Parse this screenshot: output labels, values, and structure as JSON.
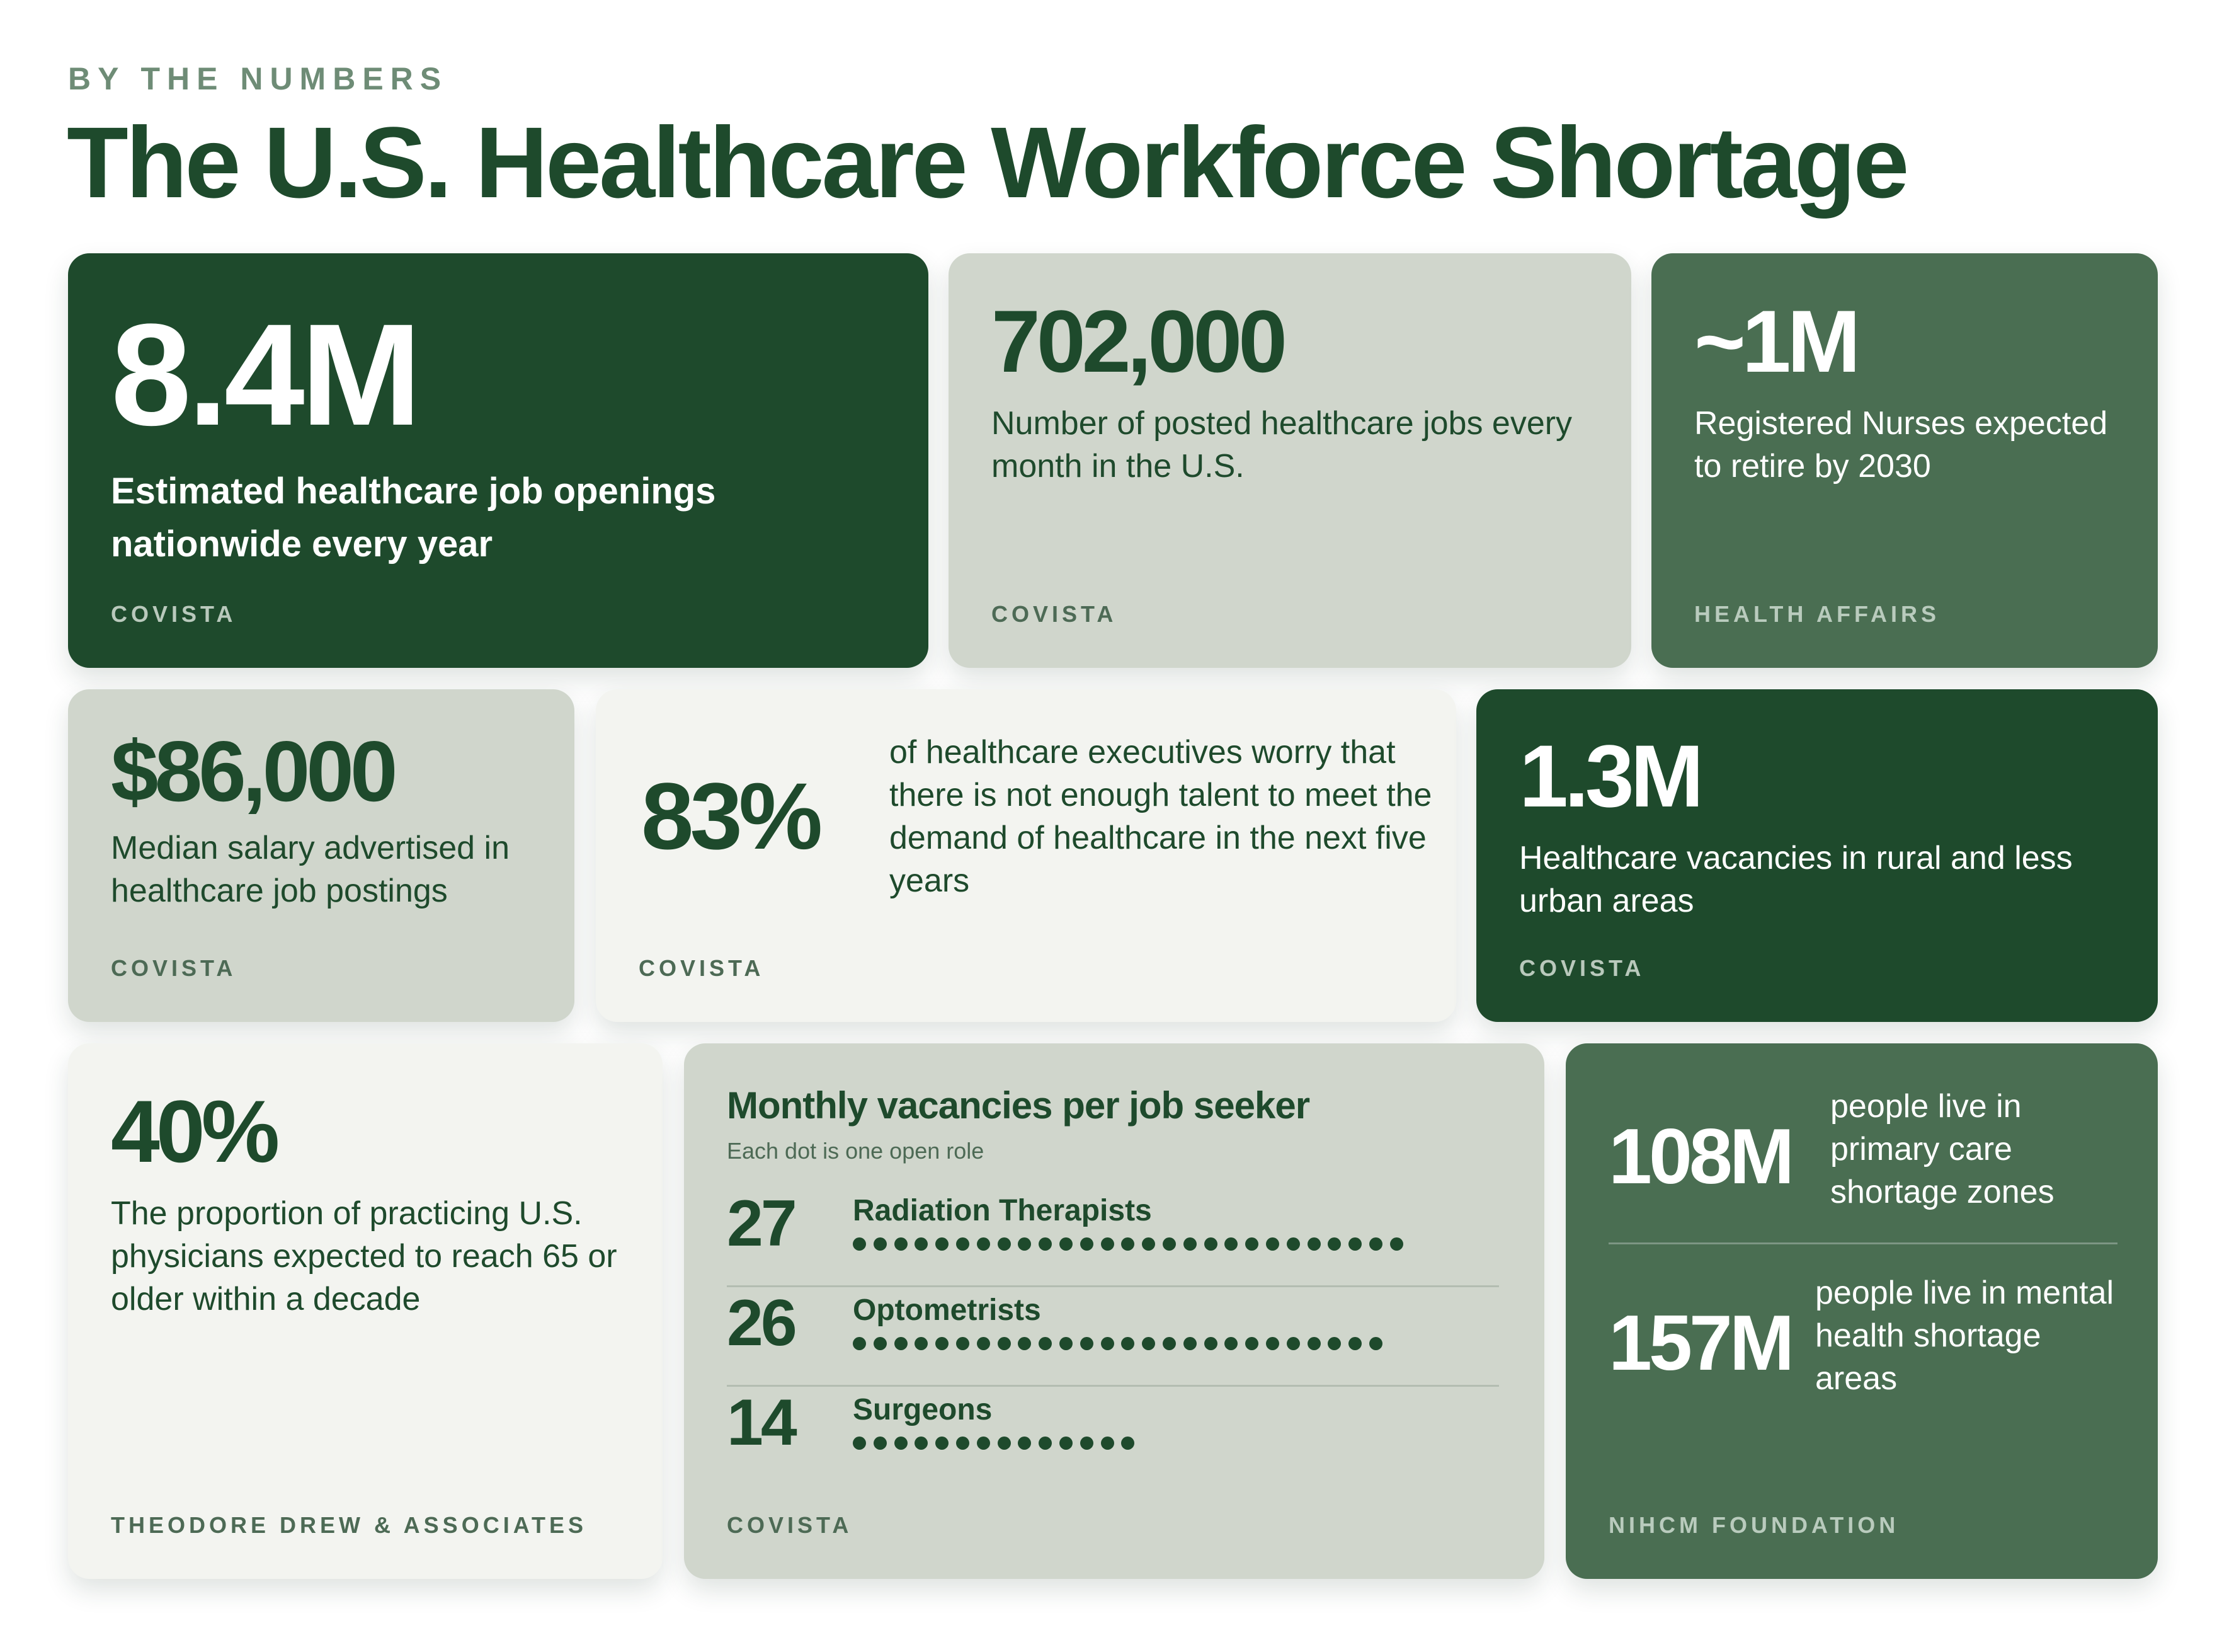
{
  "header": {
    "kicker": "BY THE NUMBERS",
    "title": "The U.S. Healthcare Workforce Shortage"
  },
  "cards": {
    "openings": {
      "value": "8.4M",
      "desc": "Estimated healthcare job openings nationwide every year",
      "source": "COVISTA"
    },
    "postings": {
      "value": "702,000",
      "desc": "Number of posted healthcare jobs every month in the U.S.",
      "source": "COVISTA"
    },
    "nurses": {
      "value": "~1M",
      "desc": "Registered Nurses expected to retire by 2030",
      "source": "HEALTH AFFAIRS"
    },
    "salary": {
      "value": "$86,000",
      "desc": "Median salary advertised in healthcare job postings",
      "source": "COVISTA"
    },
    "executives": {
      "value": "83%",
      "desc": "of healthcare executives worry that there is not enough talent to meet the demand of healthcare in the next five years",
      "source": "COVISTA"
    },
    "rural": {
      "value": "1.3M",
      "desc": "Healthcare vacancies in rural and less urban areas",
      "source": "COVISTA"
    },
    "physicians": {
      "value": "40%",
      "desc": "The proportion of practicing U.S. physicians expected to reach 65 or older within a decade",
      "source": "THEODORE DREW & ASSOCIATES"
    },
    "shortage": {
      "primary": {
        "value": "108M",
        "desc": "people live in primary care shortage zones"
      },
      "mental": {
        "value": "157M",
        "desc": "people live in mental health shortage areas"
      },
      "source": "NIHCM FOUNDATION"
    }
  },
  "chart_data": {
    "type": "bar",
    "title": "Monthly vacancies per job seeker",
    "subtitle": "Each dot is one open role",
    "categories": [
      "Radiation Therapists",
      "Optometrists",
      "Surgeons"
    ],
    "values": [
      27,
      26,
      14
    ],
    "source": "COVISTA"
  },
  "colors": {
    "dark_green": "#1e4a2c",
    "mid_green": "#4a6e52",
    "sage": "#d0d6cc",
    "pale": "#f3f4f0",
    "kicker": "#6e8c76"
  }
}
